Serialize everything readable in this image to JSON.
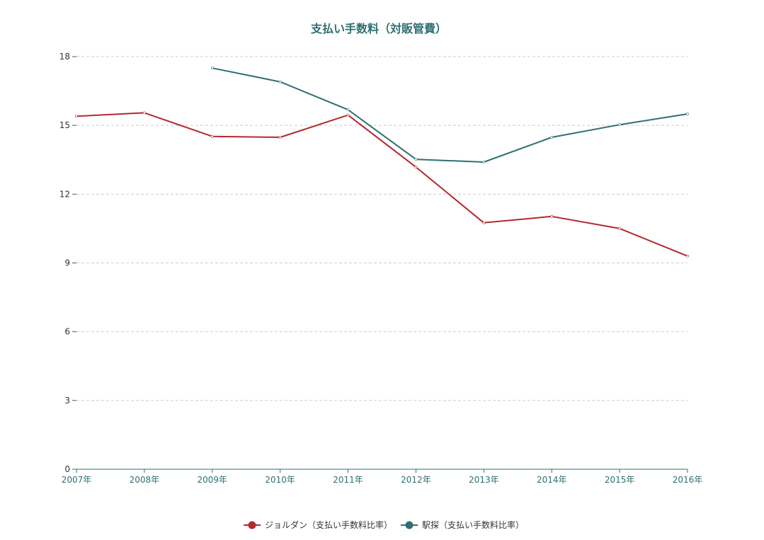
{
  "chart_data": {
    "type": "line",
    "title": "支払い手数料（対販管費）",
    "xlabel": "",
    "ylabel": "",
    "categories": [
      "2007年",
      "2008年",
      "2009年",
      "2010年",
      "2011年",
      "2012年",
      "2013年",
      "2014年",
      "2015年",
      "2016年"
    ],
    "ylim": [
      0,
      18
    ],
    "yticks": [
      0,
      3,
      6,
      9,
      12,
      15,
      18
    ],
    "grid": true,
    "legend_position": "bottom",
    "series": [
      {
        "name": "ジョルダン（支払い手数料比率）",
        "color": "#b5282d",
        "values": [
          15.4,
          15.55,
          14.52,
          14.48,
          15.45,
          13.18,
          10.75,
          11.03,
          10.5,
          9.3
        ]
      },
      {
        "name": "駅探（支払い手数料比率）",
        "color": "#2e6f72",
        "values": [
          null,
          null,
          17.5,
          16.9,
          15.68,
          13.52,
          13.4,
          14.48,
          15.03,
          15.5
        ]
      }
    ]
  }
}
